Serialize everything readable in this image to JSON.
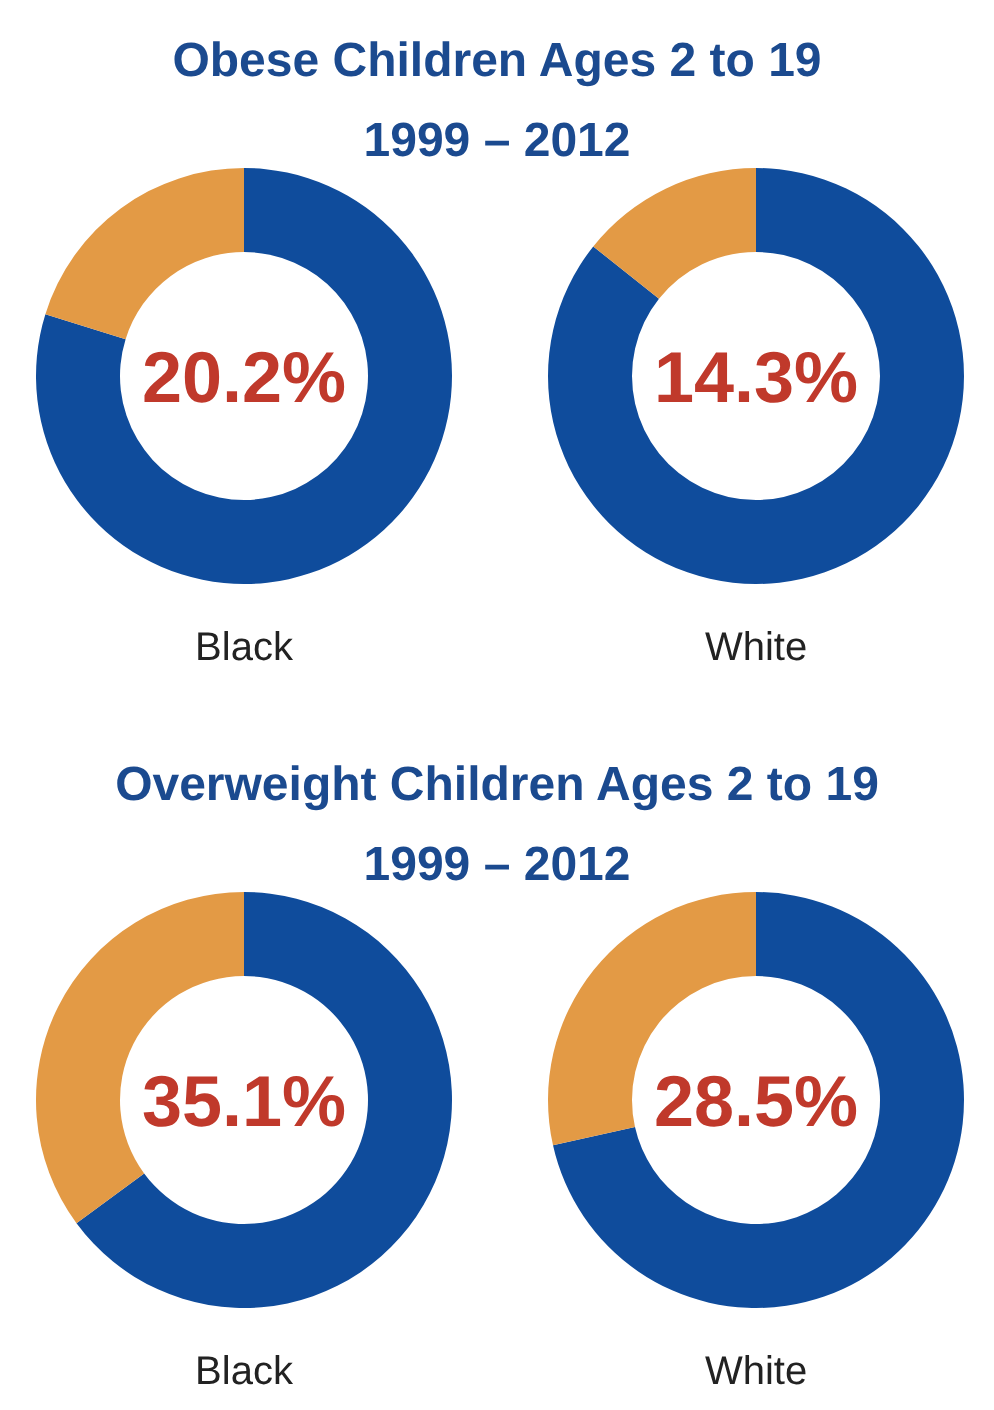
{
  "chart_data": [
    {
      "type": "donut",
      "title": "Obese Children Ages 2 to 19",
      "subtitle": "1999 – 2012",
      "xlabel": "Black",
      "categories": [
        null,
        null
      ],
      "values": [
        79.8,
        20.2
      ],
      "colors": [
        "#0f4c9c",
        "#e39a45"
      ],
      "annotations": [
        "20.2%"
      ]
    },
    {
      "type": "donut",
      "xlabel": "White",
      "categories": [
        null,
        null
      ],
      "values": [
        85.7,
        14.3
      ],
      "colors": [
        "#0f4c9c",
        "#e39a45"
      ],
      "annotations": [
        "14.3%"
      ]
    },
    {
      "type": "donut",
      "title": "Overweight Children Ages 2 to 19",
      "subtitle": "1999 – 2012",
      "xlabel": "Black",
      "categories": [
        null,
        null
      ],
      "values": [
        64.9,
        35.1
      ],
      "colors": [
        "#0f4c9c",
        "#e39a45"
      ],
      "annotations": [
        "35.1%"
      ]
    },
    {
      "type": "donut",
      "xlabel": "White",
      "categories": [
        null,
        null
      ],
      "values": [
        71.5,
        28.5
      ],
      "colors": [
        "#0f4c9c",
        "#e39a45"
      ],
      "annotations": [
        "28.5%"
      ]
    }
  ]
}
